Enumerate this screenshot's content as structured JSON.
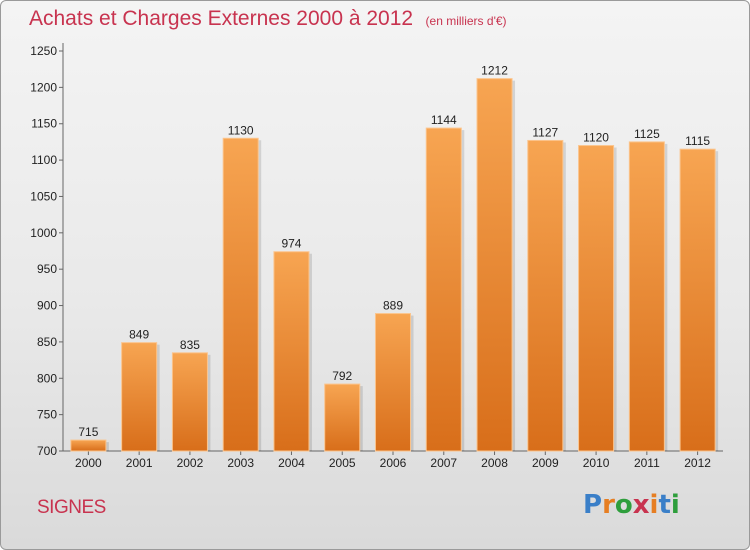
{
  "header": {
    "title": "Achats et Charges Externes 2000 à 2012",
    "subtitle": "(en milliers d'€)"
  },
  "footer": {
    "place": "SIGNES",
    "logo": "Proxiti",
    "logo_colors": [
      "#3a7fc8",
      "#e67e22",
      "#2e9e3c",
      "#c8334f",
      "#e67e22",
      "#3a7fc8",
      "#2e9e3c"
    ]
  },
  "chart_data": {
    "type": "bar",
    "categories": [
      "2000",
      "2001",
      "2002",
      "2003",
      "2004",
      "2005",
      "2006",
      "2007",
      "2008",
      "2009",
      "2010",
      "2011",
      "2012"
    ],
    "values": [
      715,
      849,
      835,
      1130,
      974,
      792,
      889,
      1144,
      1212,
      1127,
      1120,
      1125,
      1115
    ],
    "ylim": [
      700,
      1250
    ],
    "yticks": [
      700,
      750,
      800,
      850,
      900,
      950,
      1000,
      1050,
      1100,
      1150,
      1200,
      1250
    ],
    "grid": false,
    "bar_color": "#f0963c"
  }
}
